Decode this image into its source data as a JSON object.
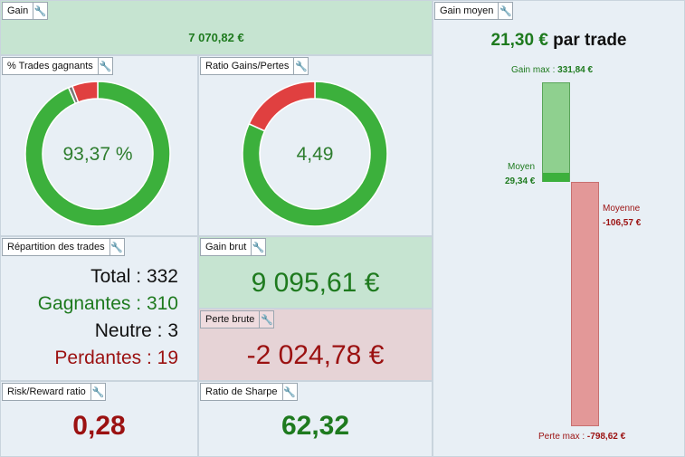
{
  "gain": {
    "title": "Gain",
    "value": "7 070,82 €"
  },
  "trades_gagnants": {
    "title": "% Trades gagnants",
    "value": "93,37 %",
    "win_pct": 93.37,
    "neutral_pct": 0.9,
    "loss_pct": 5.72
  },
  "ratio_gains_pertes": {
    "title": "Ratio Gains/Pertes",
    "value": "4,49",
    "gain_share": 81.8,
    "loss_share": 18.2
  },
  "repartition": {
    "title": "Répartition des trades",
    "total_label": "Total :",
    "total": "332",
    "gagnantes_label": "Gagnantes :",
    "gagnantes": "310",
    "neutre_label": "Neutre :",
    "neutre": "3",
    "perdantes_label": "Perdantes :",
    "perdantes": "19"
  },
  "gain_brut": {
    "title": "Gain brut",
    "value": "9 095,61 €"
  },
  "perte_brute": {
    "title": "Perte brute",
    "value": "-2 024,78 €"
  },
  "risk_reward": {
    "title": "Risk/Reward ratio",
    "value": "0,28"
  },
  "sharpe": {
    "title": "Ratio de Sharpe",
    "value": "62,32"
  },
  "gain_moyen": {
    "title": "Gain moyen",
    "headline_value": "21,30 €",
    "headline_suffix": " par trade",
    "gain_max_label": "Gain max :",
    "gain_max": "331,84 €",
    "gain_max_value": 331.84,
    "moyen_label": "Moyen",
    "moyen": "29,34 €",
    "moyen_value": 29.34,
    "moyenne_label": "Moyenne",
    "moyenne": "-106,57 €",
    "moyenne_value": -106.57,
    "perte_max_label": "Perte max :",
    "perte_max": "-798,62 €",
    "perte_max_value": -798.62
  },
  "colors": {
    "green": "#3cb03c",
    "red": "#e04040",
    "dark_green": "#1e7a1e",
    "dark_red": "#9b1111",
    "light_green": "#8fd08f",
    "light_red": "#e39898",
    "grey": "#7a7a7a"
  },
  "icons": {
    "wrench": "wrench-icon"
  }
}
